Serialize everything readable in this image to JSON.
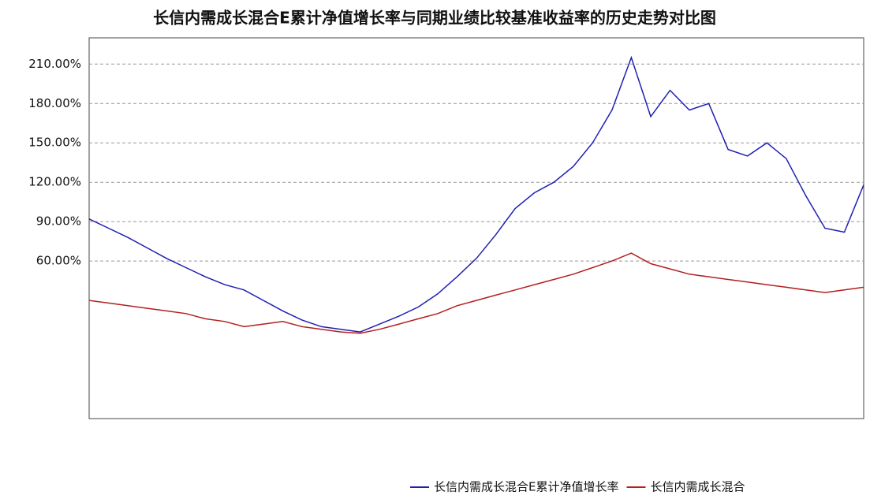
{
  "chart_data": {
    "type": "line",
    "title": "长信内需成长混合E累计净值增长率与同期业绩比较基准收益率的历史走势对比图",
    "categories": [
      null,
      null,
      null,
      null,
      null,
      null,
      null,
      null,
      null,
      null,
      null,
      null,
      null,
      null,
      null,
      null,
      null,
      null,
      null,
      null,
      null,
      null,
      null,
      null,
      null,
      null,
      null,
      null,
      null,
      null,
      null,
      null,
      null,
      null,
      null,
      null,
      null,
      null,
      null,
      null,
      null
    ],
    "series": [
      {
        "name": "长信内需成长混合E累计净值增长率",
        "color": "#1f1fb4",
        "values": [
          92,
          85,
          78,
          70,
          62,
          55,
          48,
          42,
          38,
          30,
          22,
          15,
          10,
          8,
          6,
          12,
          18,
          25,
          35,
          48,
          62,
          80,
          100,
          112,
          120,
          132,
          150,
          175,
          215,
          170,
          190,
          175,
          180,
          145,
          140,
          150,
          138,
          110,
          85,
          82,
          118
        ]
      },
      {
        "name": "长信内需成长混合",
        "color": "#b41f1f",
        "values": [
          30,
          28,
          26,
          24,
          22,
          20,
          16,
          14,
          10,
          12,
          14,
          10,
          8,
          6,
          5,
          8,
          12,
          16,
          20,
          26,
          30,
          34,
          38,
          42,
          46,
          50,
          55,
          60,
          66,
          58,
          54,
          50,
          48,
          46,
          44,
          42,
          40,
          38,
          36,
          38,
          40
        ]
      }
    ],
    "ylim": [
      -60,
      230
    ],
    "yticks": [
      {
        "value": 60,
        "label": "60.00%"
      },
      {
        "value": 90,
        "label": "90.00%"
      },
      {
        "value": 120,
        "label": "120.00%"
      },
      {
        "value": 150,
        "label": "150.00%"
      },
      {
        "value": 180,
        "label": "180.00%"
      },
      {
        "value": 210,
        "label": "210.00%"
      }
    ],
    "grid": true
  }
}
